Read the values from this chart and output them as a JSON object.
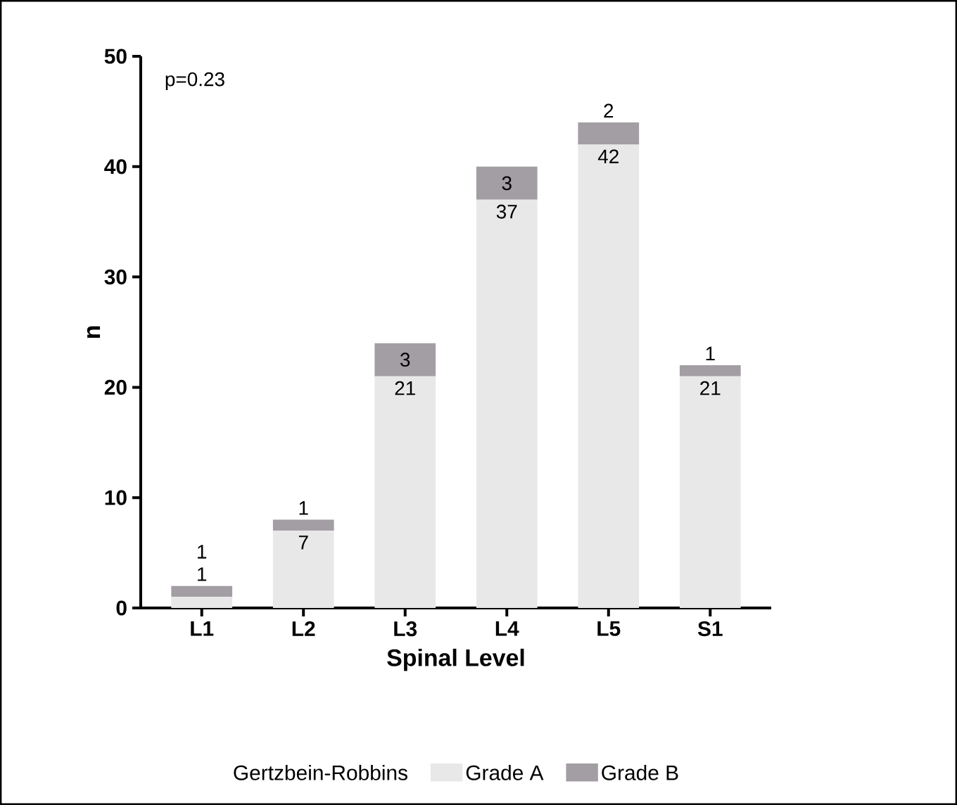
{
  "chart_data": {
    "type": "bar",
    "stacked": true,
    "xlabel": "Spinal Level",
    "ylabel": "n",
    "categories": [
      "L1",
      "L2",
      "L3",
      "L4",
      "L5",
      "S1"
    ],
    "series": [
      {
        "name": "Grade A",
        "color": "#e8e8e8",
        "values": [
          1,
          7,
          21,
          37,
          42,
          21
        ]
      },
      {
        "name": "Grade B",
        "color": "#a29ea3",
        "values": [
          1,
          1,
          3,
          3,
          2,
          1
        ]
      }
    ],
    "ylim": [
      0,
      50
    ],
    "yticks": [
      0,
      10,
      20,
      30,
      40,
      50
    ],
    "data_labels": true,
    "legend": "bottom",
    "legend_title": "Gertzbein-Robbins",
    "annotations": [
      "p=0.23"
    ]
  }
}
